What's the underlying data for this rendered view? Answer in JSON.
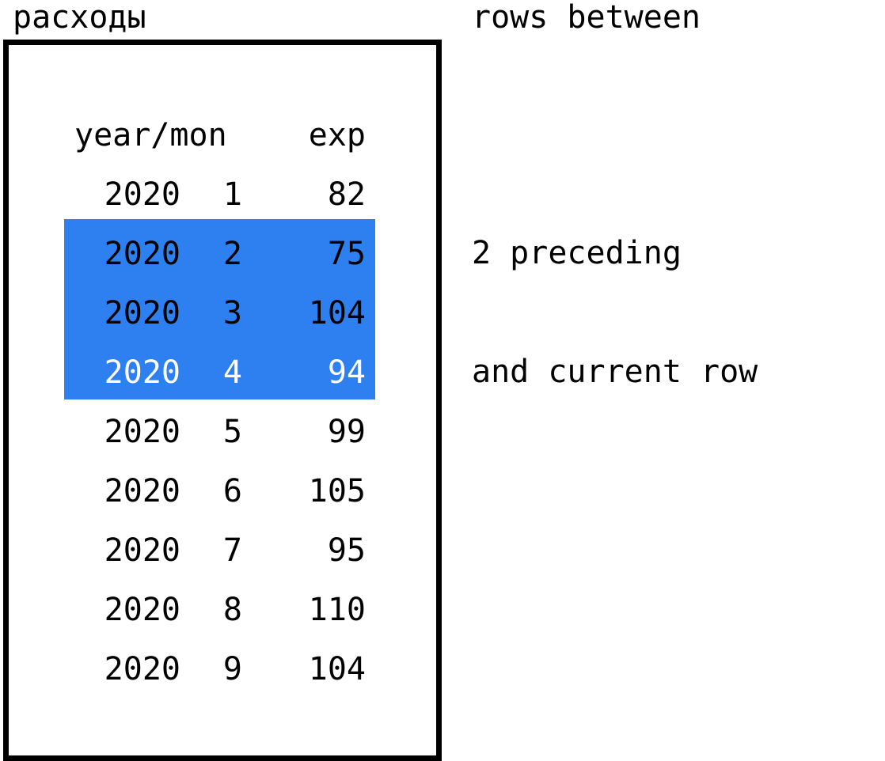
{
  "table": {
    "title": "расходы",
    "columns": [
      "year/mon",
      "exp"
    ],
    "rows": [
      {
        "year": "2020",
        "mon": "1",
        "exp": "82"
      },
      {
        "year": "2020",
        "mon": "2",
        "exp": "75"
      },
      {
        "year": "2020",
        "mon": "3",
        "exp": "104"
      },
      {
        "year": "2020",
        "mon": "4",
        "exp": "94"
      },
      {
        "year": "2020",
        "mon": "5",
        "exp": "99"
      },
      {
        "year": "2020",
        "mon": "6",
        "exp": "105"
      },
      {
        "year": "2020",
        "mon": "7",
        "exp": "95"
      },
      {
        "year": "2020",
        "mon": "8",
        "exp": "110"
      },
      {
        "year": "2020",
        "mon": "9",
        "exp": "104"
      }
    ],
    "highlighted_rows": [
      2,
      3,
      4
    ],
    "current_row": 4
  },
  "window": {
    "title": "rows between",
    "preceding": "2 preceding",
    "current": "and current row"
  },
  "colors": {
    "highlight": "#2e7ff0",
    "current_row_text": "#ffffff",
    "text": "#000000",
    "frame": "#000000"
  }
}
